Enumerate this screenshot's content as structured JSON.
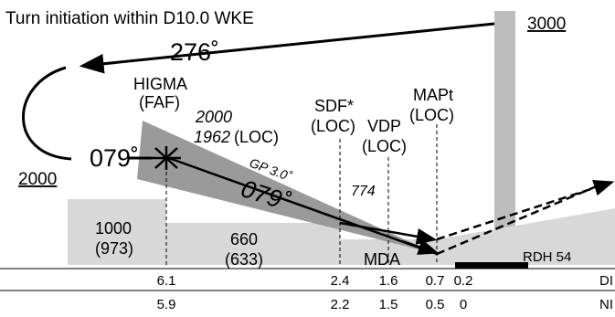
{
  "header": {
    "title": "Turn initiation within D10.0 WKE"
  },
  "missed_approach": {
    "course": "276˚",
    "altitude": "3000"
  },
  "procedure_turn": {
    "course": "079˚",
    "altitude": "2000"
  },
  "fixes": {
    "higma_name": "HIGMA",
    "higma_type": "(FAF)",
    "faf_altitude": "2000",
    "faf_altitude_loc": "1962",
    "faf_altitude_loc_suffix": "(LOC)",
    "sdf_name": "SDF*",
    "sdf_type": "(LOC)",
    "vdp_name": "VDP",
    "vdp_type": "(LOC)",
    "mapt_name": "MAPt",
    "mapt_type": "(LOC)"
  },
  "glidepath": {
    "label": "GP 3.0˚",
    "final_course": "079˚"
  },
  "step_altitude": "774",
  "terrain": {
    "seg1_msl": "1000",
    "seg1_agl": "(973)",
    "seg2_msl": "660",
    "seg2_agl": "(633)",
    "mda_label": "MDA",
    "rdh_label": "RDH 54"
  },
  "distance_rows": {
    "row1_label": "DI",
    "row1_values": [
      "6.1",
      "2.4",
      "1.6",
      "0.7",
      "0.2"
    ],
    "row2_label": "NI",
    "row2_values": [
      "5.9",
      "2.2",
      "1.5",
      "0.5",
      "0"
    ]
  },
  "colors": {
    "terrain": "#d8d8d8",
    "glide_wedge": "#9a9a9a",
    "missed_column": "#bdbdbd",
    "ink": "#000000"
  }
}
